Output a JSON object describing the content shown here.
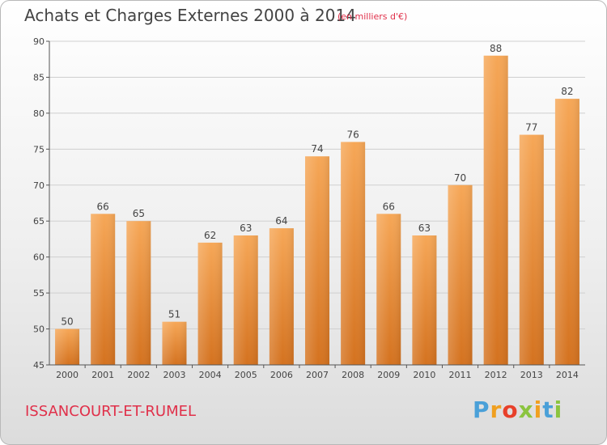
{
  "title": "Achats et Charges Externes 2000 à 2014",
  "subtitle": "(en milliers d'€)",
  "place": "ISSANCOURT-ET-RUMEL",
  "brand": {
    "letters": [
      {
        "char": "P",
        "color": "#4aa0d8"
      },
      {
        "char": "r",
        "color": "#f0a020"
      },
      {
        "char": "o",
        "color": "#e8402a"
      },
      {
        "char": "x",
        "color": "#8bc43f"
      },
      {
        "char": "i",
        "color": "#f0a020"
      },
      {
        "char": "t",
        "color": "#4aa0d8"
      },
      {
        "char": "i",
        "color": "#8bc43f"
      }
    ]
  },
  "colors": {
    "bar_top": "#f6a757",
    "bar_bottom": "#d4721f",
    "axis": "#555555",
    "grid": "#cfcfcf"
  },
  "chart_data": {
    "type": "bar",
    "categories": [
      "2000",
      "2001",
      "2002",
      "2003",
      "2004",
      "2005",
      "2006",
      "2007",
      "2008",
      "2009",
      "2010",
      "2011",
      "2012",
      "2013",
      "2014"
    ],
    "values": [
      50,
      66,
      65,
      51,
      62,
      63,
      64,
      74,
      76,
      66,
      63,
      70,
      88,
      77,
      82
    ],
    "ylim": [
      45,
      90
    ],
    "yticks": [
      45,
      50,
      55,
      60,
      65,
      70,
      75,
      80,
      85,
      90
    ],
    "grid": true
  }
}
